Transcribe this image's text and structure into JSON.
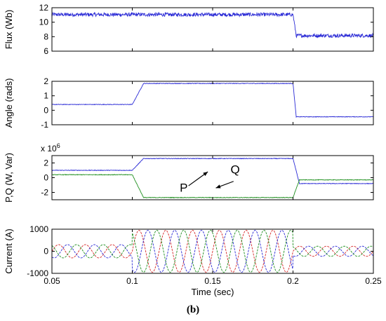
{
  "caption": "(b)",
  "colors": {
    "blue": "#2b2bd6",
    "green": "#1f8f1f",
    "red": "#d62a2a",
    "axis": "#000000"
  },
  "chart_data": [
    {
      "type": "line",
      "ylabel": "Flux (Wb)",
      "xlim": [
        0.05,
        0.25
      ],
      "ylim": [
        6,
        12
      ],
      "yticks": [
        6,
        8,
        10,
        12
      ],
      "multiplier": "",
      "series": [
        {
          "color": "#2b2bd6",
          "noise": 0.25,
          "points": [
            [
              0.05,
              11.05
            ],
            [
              0.2,
              11.05
            ],
            [
              0.202,
              8.15
            ],
            [
              0.25,
              8.15
            ]
          ]
        }
      ]
    },
    {
      "type": "line",
      "ylabel": "Angle (rads)",
      "xlim": [
        0.05,
        0.25
      ],
      "ylim": [
        -1,
        2
      ],
      "yticks": [
        -1,
        0,
        1,
        2
      ],
      "multiplier": "",
      "series": [
        {
          "color": "#2b2bd6",
          "noise": 0.02,
          "points": [
            [
              0.05,
              0.4
            ],
            [
              0.1,
              0.4
            ],
            [
              0.107,
              1.85
            ],
            [
              0.2,
              1.85
            ],
            [
              0.202,
              -0.45
            ],
            [
              0.25,
              -0.45
            ]
          ]
        }
      ]
    },
    {
      "type": "line",
      "ylabel": "P,Q (W, Var)",
      "xlim": [
        0.05,
        0.25
      ],
      "ylim": [
        -3,
        3
      ],
      "yticks": [
        -2,
        0,
        2
      ],
      "multiplier": "x 10^6",
      "annotations": [
        {
          "text": "P",
          "x": 0.132,
          "y": -1.9,
          "arrow_to": [
            0.147,
            0.8
          ],
          "arrow_from": [
            0.135,
            -1.1
          ]
        },
        {
          "text": "Q",
          "x": 0.164,
          "y": 0.55,
          "arrow_to": [
            0.152,
            -1.4
          ],
          "arrow_from": [
            0.163,
            -0.5
          ]
        }
      ],
      "series": [
        {
          "name": "Q",
          "color": "#2b2bd6",
          "noise": 0.04,
          "points": [
            [
              0.05,
              1.0
            ],
            [
              0.1,
              1.0
            ],
            [
              0.107,
              2.6
            ],
            [
              0.2,
              2.6
            ],
            [
              0.204,
              -0.8
            ],
            [
              0.25,
              -0.8
            ]
          ]
        },
        {
          "name": "P",
          "color": "#1f8f1f",
          "noise": 0.04,
          "points": [
            [
              0.05,
              0.4
            ],
            [
              0.1,
              0.4
            ],
            [
              0.107,
              -2.7
            ],
            [
              0.2,
              -2.7
            ],
            [
              0.204,
              -0.3
            ],
            [
              0.25,
              -0.3
            ]
          ]
        }
      ]
    },
    {
      "type": "line",
      "ylabel": "Current (A)",
      "xlabel": "Time (sec)",
      "xlim": [
        0.05,
        0.25
      ],
      "ylim": [
        -1000,
        1000
      ],
      "yticks": [
        -1000,
        0,
        1000
      ],
      "xticks": [
        0.05,
        0.1,
        0.15,
        0.2,
        0.25
      ],
      "multiplier": "",
      "three_phase": {
        "frequency_hz": 60,
        "amplitude_segments": [
          [
            0.05,
            0.1,
            300
          ],
          [
            0.1,
            0.2,
            950
          ],
          [
            0.2,
            0.25,
            230
          ]
        ],
        "phase_colors": [
          "#d62a2a",
          "#2b2bd6",
          "#1f8f1f"
        ]
      }
    }
  ]
}
